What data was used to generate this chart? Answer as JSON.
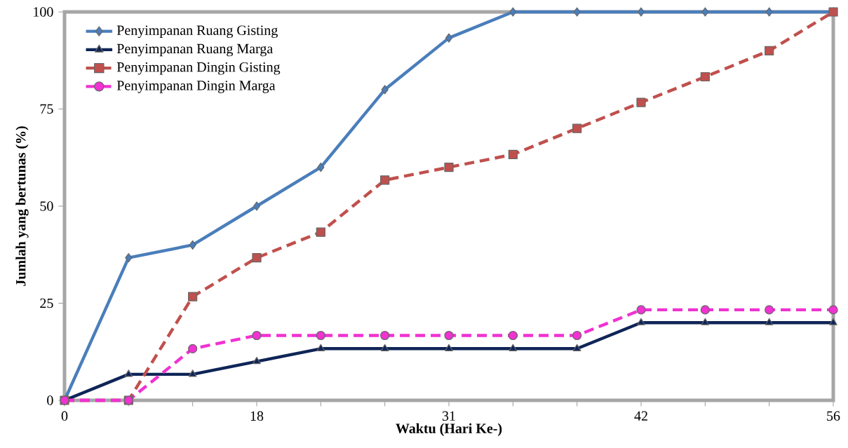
{
  "chart_data": {
    "type": "line",
    "xlabel": "Waktu (Hari Ke-)",
    "ylabel": "Jumlah yang bertunas (%)",
    "categories": [
      "0",
      null,
      null,
      "18",
      null,
      null,
      "31",
      null,
      null,
      "42",
      null,
      null,
      "56"
    ],
    "series": [
      {
        "name": "Penyimpanan Ruang Gisting",
        "color": "#4a7ebb",
        "marker": "diamond",
        "line_style": "solid",
        "values": [
          0,
          36.7,
          40,
          50,
          60,
          80,
          93.3,
          100,
          100,
          100,
          100,
          100,
          100
        ]
      },
      {
        "name": "Penyimpanan Ruang Marga",
        "color": "#0f2557",
        "marker": "triangle",
        "line_style": "solid",
        "values": [
          0,
          6.7,
          6.7,
          10,
          13.3,
          13.3,
          13.3,
          13.3,
          13.3,
          20,
          20,
          20,
          20
        ]
      },
      {
        "name": "Penyimpanan Dingin Gisting",
        "color": "#c0504d",
        "marker": "square",
        "line_style": "dashed",
        "values": [
          0,
          0,
          26.7,
          36.7,
          43.3,
          56.7,
          60,
          63.3,
          70,
          76.7,
          83.3,
          90,
          100
        ]
      },
      {
        "name": "Penyimpanan Dingin Marga",
        "color": "#f032d2",
        "marker": "circle",
        "line_style": "dashed",
        "values": [
          0,
          0,
          13.3,
          16.7,
          16.7,
          16.7,
          16.7,
          16.7,
          16.7,
          23.3,
          23.3,
          23.3,
          23.3
        ]
      }
    ],
    "ylim": [
      0,
      100
    ],
    "yticks": [
      0,
      25,
      50,
      75,
      100
    ],
    "grid": false,
    "legend": "top left"
  }
}
